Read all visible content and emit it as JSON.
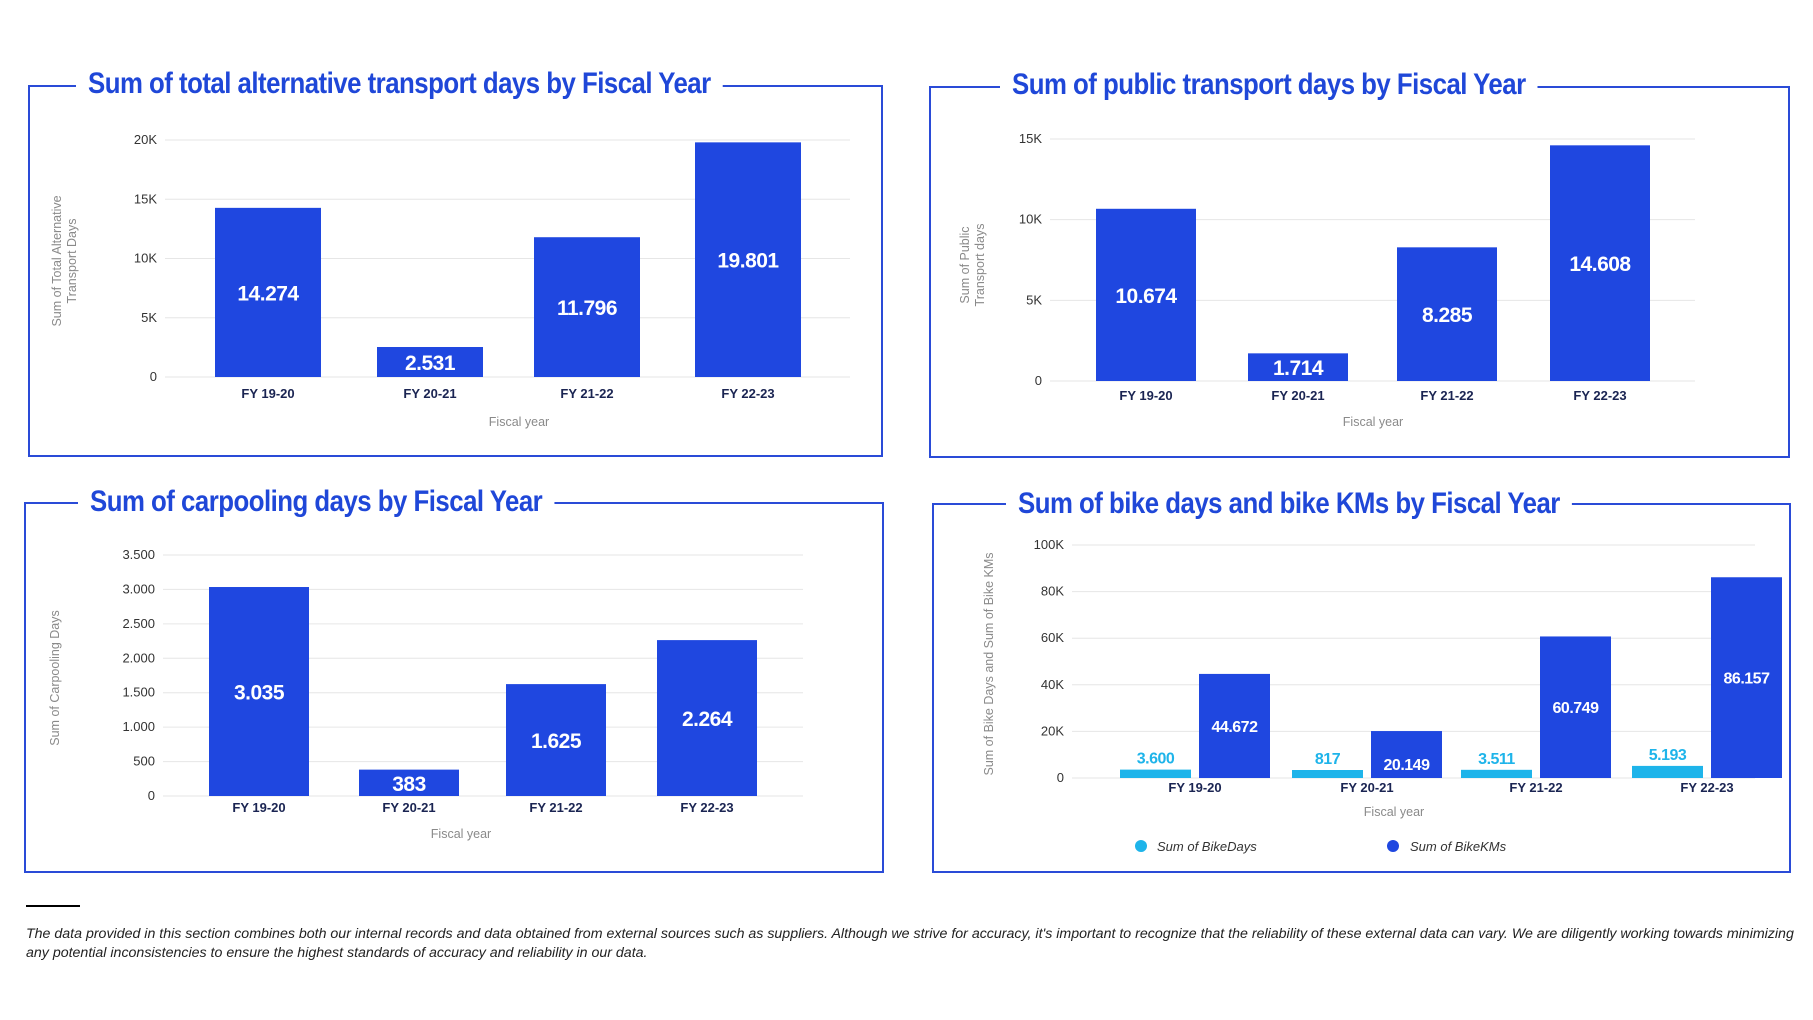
{
  "footnote": "The data provided in this section combines both our internal records and data obtained from external sources such as suppliers. Although we strive for accuracy, it's important to recognize that the reliability of these external data can vary. We are diligently working towards minimizing any potential inconsistencies to ensure the highest standards of accuracy and reliability in our data.",
  "colors": {
    "primary": "#1f47e0",
    "secondary": "#1eb4ea",
    "frame": "#2a4bd7",
    "grid": "#e6e6e6",
    "axis_text": "#8a8a8a"
  },
  "chart_data": [
    {
      "type": "bar",
      "title": "Sum of total alternative transport days by Fiscal Year",
      "categories": [
        "FY 19-20",
        "FY 20-21",
        "FY 21-22",
        "FY 22-23"
      ],
      "series": [
        {
          "values": [
            14274,
            2531,
            11796,
            19801
          ],
          "labels": [
            "14.274",
            "2.531",
            "11.796",
            "19.801"
          ]
        }
      ],
      "ylabel": "Sum of Total Alternative Transport Days",
      "xlabel": "Fiscal year",
      "ylim": [
        0,
        20000
      ],
      "yticks": [
        0,
        5000,
        10000,
        15000,
        20000
      ],
      "ytick_labels": [
        "0",
        "5K",
        "10K",
        "15K",
        "20K"
      ],
      "grid": true
    },
    {
      "type": "bar",
      "title": "Sum of public transport days by Fiscal Year",
      "categories": [
        "FY 19-20",
        "FY 20-21",
        "FY 21-22",
        "FY 22-23"
      ],
      "series": [
        {
          "values": [
            10674,
            1714,
            8285,
            14608
          ],
          "labels": [
            "10.674",
            "1.714",
            "8.285",
            "14.608"
          ]
        }
      ],
      "ylabel": "Sum of Public Transport days",
      "xlabel": "Fiscal year",
      "ylim": [
        0,
        15000
      ],
      "yticks": [
        0,
        5000,
        10000,
        15000
      ],
      "ytick_labels": [
        "0",
        "5K",
        "10K",
        "15K"
      ],
      "grid": true
    },
    {
      "type": "bar",
      "title": "Sum of carpooling days by Fiscal Year",
      "categories": [
        "FY 19-20",
        "FY 20-21",
        "FY 21-22",
        "FY 22-23"
      ],
      "series": [
        {
          "values": [
            3035,
            383,
            1625,
            2264
          ],
          "labels": [
            "3.035",
            "383",
            "1.625",
            "2.264"
          ]
        }
      ],
      "ylabel": "Sum of Carpooling Days",
      "xlabel": "Fiscal year",
      "ylim": [
        0,
        3500
      ],
      "yticks": [
        0,
        500,
        1000,
        1500,
        2000,
        2500,
        3000,
        3500
      ],
      "ytick_labels": [
        "0",
        "500",
        "1.000",
        "1.500",
        "2.000",
        "2.500",
        "3.000",
        "3.500"
      ],
      "grid": true
    },
    {
      "type": "bar",
      "title": "Sum of bike days and bike KMs by Fiscal Year",
      "categories": [
        "FY 19-20",
        "FY 20-21",
        "FY 21-22",
        "FY 22-23"
      ],
      "series": [
        {
          "name": "Sum of BikeDays",
          "values": [
            3600,
            817,
            3511,
            5193
          ],
          "labels": [
            "3.600",
            "817",
            "3.511",
            "5.193"
          ]
        },
        {
          "name": "Sum of BikeKMs",
          "values": [
            44672,
            20149,
            60749,
            86157
          ],
          "labels": [
            "44.672",
            "20.149",
            "60.749",
            "86.157"
          ]
        }
      ],
      "ylabel": "Sum of Bike Days and Sum of Bike KMs",
      "xlabel": "Fiscal year",
      "ylim": [
        0,
        100000
      ],
      "yticks": [
        0,
        20000,
        40000,
        60000,
        80000,
        100000
      ],
      "ytick_labels": [
        "0",
        "20K",
        "40K",
        "60K",
        "80K",
        "100K"
      ],
      "legend_position": "bottom",
      "grid": true
    }
  ]
}
